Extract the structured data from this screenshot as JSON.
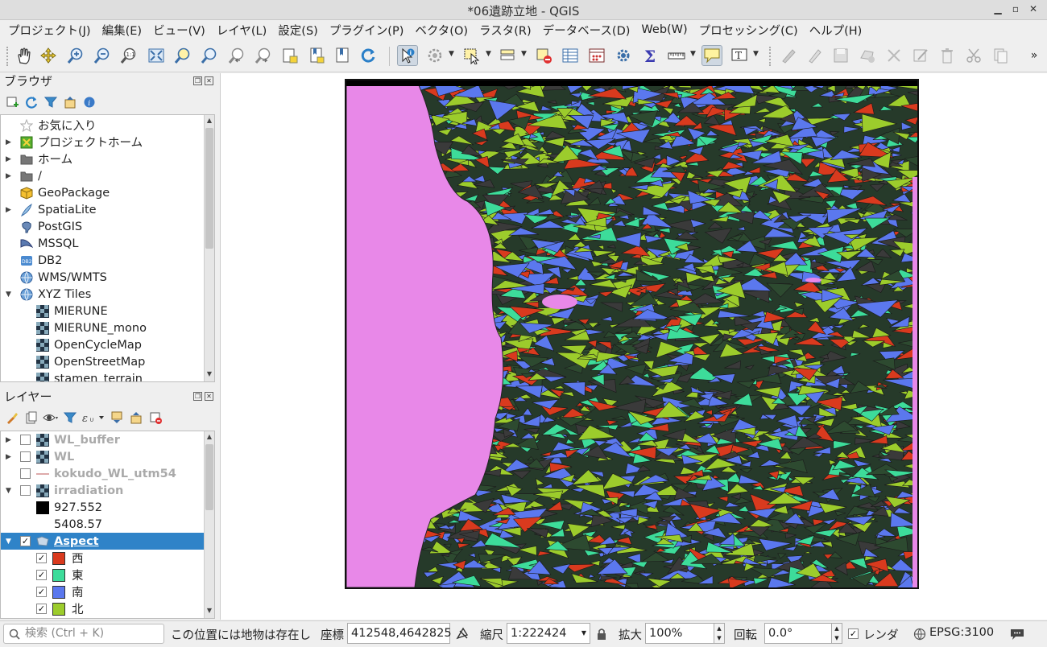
{
  "window": {
    "title": "*06遺跡立地 - QGIS"
  },
  "menu": [
    "プロジェクト(J)",
    "編集(E)",
    "ビュー(V)",
    "レイヤ(L)",
    "設定(S)",
    "プラグイン(P)",
    "ベクタ(O)",
    "ラスタ(R)",
    "データベース(D)",
    "Web(W)",
    "プロセッシング(C)",
    "ヘルプ(H)"
  ],
  "browser": {
    "title": "ブラウザ",
    "items": [
      {
        "label": "お気に入り",
        "icon": "star-icon"
      },
      {
        "label": "プロジェクトホーム",
        "icon": "project-home-icon"
      },
      {
        "label": "ホーム",
        "icon": "folder-icon"
      },
      {
        "label": "/",
        "icon": "folder-icon"
      },
      {
        "label": "GeoPackage",
        "icon": "geopackage-icon"
      },
      {
        "label": "SpatiaLite",
        "icon": "spatialite-icon"
      },
      {
        "label": "PostGIS",
        "icon": "postgis-icon"
      },
      {
        "label": "MSSQL",
        "icon": "mssql-icon"
      },
      {
        "label": "DB2",
        "icon": "db2-icon"
      },
      {
        "label": "WMS/WMTS",
        "icon": "globe-icon"
      },
      {
        "label": "XYZ Tiles",
        "icon": "globe-icon"
      },
      {
        "label": "MIERUNE",
        "icon": "tile-icon"
      },
      {
        "label": "MIERUNE_mono",
        "icon": "tile-icon"
      },
      {
        "label": "OpenCycleMap",
        "icon": "tile-icon"
      },
      {
        "label": "OpenStreetMap",
        "icon": "tile-icon"
      },
      {
        "label": "stamen_terrain",
        "icon": "tile-icon"
      }
    ]
  },
  "layers": {
    "title": "レイヤー",
    "items": [
      {
        "label": "WL_buffer"
      },
      {
        "label": "WL"
      },
      {
        "label": "kokudo_WL_utm54"
      },
      {
        "label": "irradiation"
      },
      {
        "label": "927.552"
      },
      {
        "label": "5408.57"
      },
      {
        "label": "Aspect"
      },
      {
        "label": "西",
        "color": "#d93a1e"
      },
      {
        "label": "東",
        "color": "#3ddc9a"
      },
      {
        "label": "南",
        "color": "#5b78ee"
      },
      {
        "label": "北",
        "color": "#9ccc2c"
      }
    ]
  },
  "status": {
    "search_placeholder": "検索 (Ctrl + K)",
    "message": "この位置には地物は存在し",
    "coord_label": "座標",
    "coord_value": "412548,4642825",
    "scale_label": "縮尺",
    "scale_value": "1:222424",
    "zoom_label": "拡大",
    "zoom_value": "100%",
    "rotation_label": "回転",
    "rotation_value": "0.0°",
    "render_label": "レンダ",
    "crs": "EPSG:3100"
  },
  "colors": {
    "sea": "#e888e8",
    "west": "#d93a1e",
    "east": "#3ddc9a",
    "south": "#5b78ee",
    "north": "#9ccc2c"
  }
}
